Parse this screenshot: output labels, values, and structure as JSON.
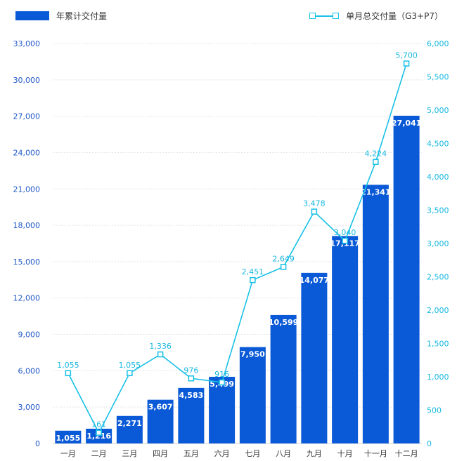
{
  "legend": {
    "bar_label": "年累计交付量",
    "line_label": "单月总交付量（G3+P7）"
  },
  "colors": {
    "bar": "#0a5ad7",
    "line": "#19c0e6",
    "left_axis_text": "#1f58c7",
    "right_axis_text": "#19b8e0"
  },
  "chart_data": {
    "type": "bar",
    "categories": [
      "一月",
      "二月",
      "三月",
      "四月",
      "五月",
      "六月",
      "七月",
      "八月",
      "九月",
      "十月",
      "十一月",
      "十二月"
    ],
    "series": [
      {
        "name": "年累计交付量",
        "type": "bar",
        "axis": "left",
        "values": [
          1055,
          1216,
          2271,
          3607,
          4583,
          5499,
          7950,
          10599,
          14077,
          17117,
          21341,
          27041
        ],
        "labels": [
          "1,055",
          "1,216",
          "2,271",
          "3,607",
          "4,583",
          "5,499",
          "7,950",
          "10,599",
          "14,077",
          "17,117",
          "21,341",
          "27,041"
        ]
      },
      {
        "name": "单月总交付量（G3+P7）",
        "type": "line",
        "axis": "right",
        "values": [
          1055,
          161,
          1055,
          1336,
          976,
          916,
          2451,
          2649,
          3478,
          3040,
          4224,
          5700
        ],
        "labels": [
          "1,055",
          "161",
          "1,055",
          "1,336",
          "976",
          "916",
          "2,451",
          "2,649",
          "3,478",
          "3,040",
          "4,224",
          "5,700"
        ]
      }
    ],
    "left_axis": {
      "ylim": [
        0,
        33000
      ],
      "ticks": [
        0,
        3000,
        6000,
        9000,
        12000,
        15000,
        18000,
        21000,
        24000,
        27000,
        30000,
        33000
      ],
      "tick_labels": [
        "0",
        "3,000",
        "6,000",
        "9,000",
        "12,000",
        "15,000",
        "18,000",
        "21,000",
        "24,000",
        "27,000",
        "30,000",
        "33,000"
      ]
    },
    "right_axis": {
      "ylim": [
        0,
        6000
      ],
      "ticks": [
        0,
        500,
        1000,
        1500,
        2000,
        2500,
        3000,
        3500,
        4000,
        4500,
        5000,
        5500,
        6000
      ],
      "tick_labels": [
        "0",
        "500",
        "1,000",
        "1,500",
        "2,000",
        "2,500",
        "3,000",
        "3,500",
        "4,000",
        "4,500",
        "5,000",
        "5,500",
        "6,000"
      ]
    },
    "grid": true,
    "legend_position": "top"
  }
}
